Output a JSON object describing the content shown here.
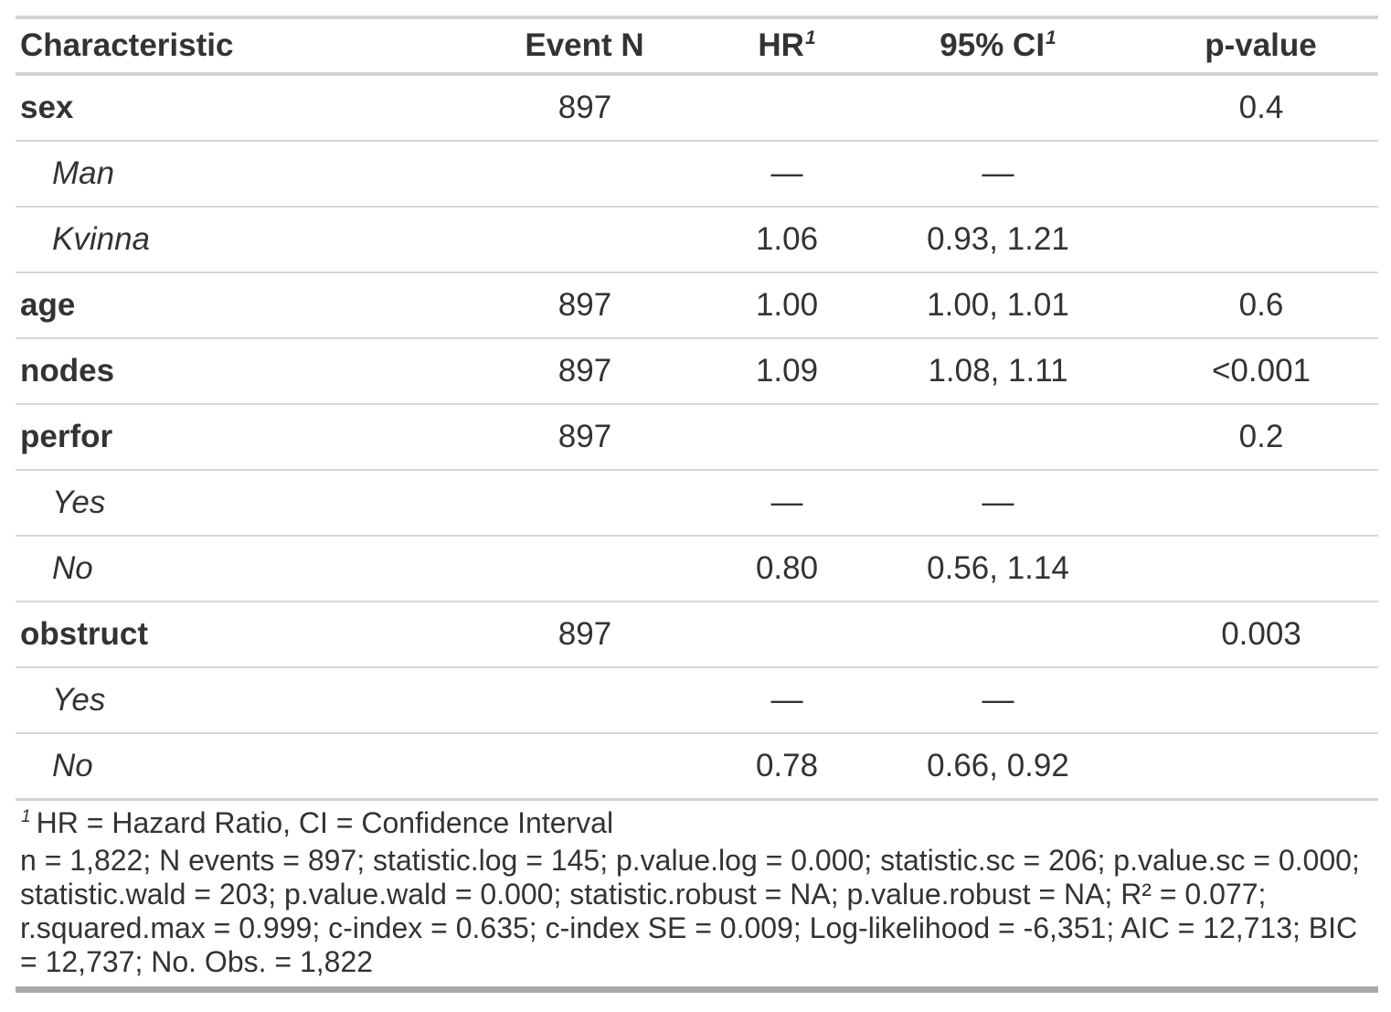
{
  "table": {
    "columns": [
      {
        "label": "Characteristic",
        "mark": ""
      },
      {
        "label": "Event N",
        "mark": ""
      },
      {
        "label": "HR",
        "mark": "1"
      },
      {
        "label": "95% CI",
        "mark": "1"
      },
      {
        "label": "p-value",
        "mark": ""
      }
    ],
    "rows": [
      {
        "label": "sex",
        "type": "variable",
        "event_n": "897",
        "hr": "",
        "ci": "",
        "p": "0.4"
      },
      {
        "label": "Man",
        "type": "level",
        "event_n": "",
        "hr": "—",
        "ci": "—",
        "p": ""
      },
      {
        "label": "Kvinna",
        "type": "level",
        "event_n": "",
        "hr": "1.06",
        "ci": "0.93, 1.21",
        "p": ""
      },
      {
        "label": "age",
        "type": "variable",
        "event_n": "897",
        "hr": "1.00",
        "ci": "1.00, 1.01",
        "p": "0.6"
      },
      {
        "label": "nodes",
        "type": "variable",
        "event_n": "897",
        "hr": "1.09",
        "ci": "1.08, 1.11",
        "p": "<0.001"
      },
      {
        "label": "perfor",
        "type": "variable",
        "event_n": "897",
        "hr": "",
        "ci": "",
        "p": "0.2"
      },
      {
        "label": "Yes",
        "type": "level",
        "event_n": "",
        "hr": "—",
        "ci": "—",
        "p": ""
      },
      {
        "label": "No",
        "type": "level",
        "event_n": "",
        "hr": "0.80",
        "ci": "0.56, 1.14",
        "p": ""
      },
      {
        "label": "obstruct",
        "type": "variable",
        "event_n": "897",
        "hr": "",
        "ci": "",
        "p": "0.003"
      },
      {
        "label": "Yes",
        "type": "level",
        "event_n": "",
        "hr": "—",
        "ci": "—",
        "p": ""
      },
      {
        "label": "No",
        "type": "level",
        "event_n": "",
        "hr": "0.78",
        "ci": "0.66, 0.92",
        "p": ""
      }
    ],
    "footnotes": [
      {
        "mark": "1",
        "text": "HR = Hazard Ratio, CI = Confidence Interval"
      },
      {
        "mark": "",
        "text": "n = 1,822; N events = 897; statistic.log = 145; p.value.log = 0.000; statistic.sc = 206; p.value.sc = 0.000; statistic.wald = 203; p.value.wald = 0.000; statistic.robust = NA; p.value.robust = NA; R² = 0.077; r.squared.max = 0.999; c-index = 0.635; c-index SE = 0.009; Log-likelihood = -6,351; AIC = 12,713; BIC = 12,737; No. Obs. = 1,822"
      }
    ],
    "colors": {
      "text": "#333333",
      "border_light": "#D3D3D3",
      "row_divider": "#D7D7D7",
      "bottom_border": "#A9A9A9",
      "background": "#FFFFFF"
    }
  }
}
